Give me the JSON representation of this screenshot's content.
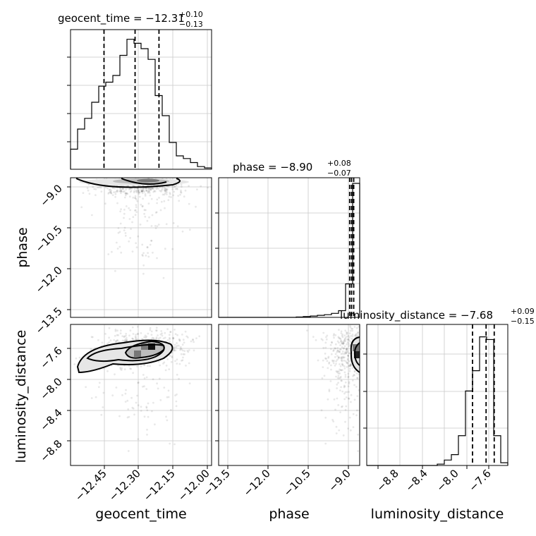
{
  "chart_data": {
    "type": "corner",
    "parameters": [
      "geocent_time",
      "phase",
      "luminosity_distance"
    ],
    "axis_labels": {
      "geocent_time": "geocent_time",
      "phase": "phase",
      "luminosity_distance": "luminosity_distance"
    },
    "titles": [
      {
        "param": "geocent_time",
        "main": "geocent_time = −12.31",
        "plus": "+0.10",
        "minus": "−0.13"
      },
      {
        "param": "phase",
        "main": "phase = −8.90",
        "plus": "+0.08",
        "minus": "−0.07"
      },
      {
        "param": "luminosity_distance",
        "main": "luminosity_distance = −7.68",
        "plus": "+0.09",
        "minus": "−0.15"
      }
    ],
    "ranges": {
      "geocent_time": [
        -12.58,
        -11.99
      ],
      "phase": [
        -13.8,
        -8.6
      ],
      "luminosity_distance": [
        -9.0,
        -7.44
      ]
    },
    "ticks": {
      "geocent_time": {
        "values": [
          -12.45,
          -12.3,
          -12.15,
          -12.0
        ],
        "labels": [
          "−12.45",
          "−12.30",
          "−12.15",
          "−12.00"
        ]
      },
      "phase_x": {
        "values": [
          -13.5,
          -12.0,
          -10.5,
          -9.0
        ],
        "labels": [
          "−13.5",
          "−12.0",
          "−10.5",
          "−9.0"
        ]
      },
      "phase_y": {
        "values": [
          -9.0,
          -10.5,
          -12.0,
          -13.5
        ],
        "labels": [
          "−9.0",
          "−10.5",
          "−12.0",
          "−13.5"
        ]
      },
      "luminosity_distance": {
        "values": [
          -8.8,
          -8.4,
          -8.0,
          -7.6
        ],
        "labels": [
          "−8.8",
          "−8.4",
          "−8.0",
          "−7.6"
        ]
      }
    },
    "histograms": {
      "geocent_time": {
        "bin_edges": [
          -12.58,
          -12.5505,
          -12.521,
          -12.4915,
          -12.462,
          -12.4325,
          -12.403,
          -12.3735,
          -12.344,
          -12.3145,
          -12.285,
          -12.2555,
          -12.226,
          -12.1965,
          -12.167,
          -12.1375,
          -12.108,
          -12.0785,
          -12.049,
          -12.0195,
          -11.99
        ],
        "counts": [
          0.15,
          0.3,
          0.38,
          0.5,
          0.62,
          0.65,
          0.7,
          0.85,
          0.97,
          0.94,
          0.9,
          0.82,
          0.55,
          0.4,
          0.2,
          0.1,
          0.08,
          0.05,
          0.02,
          0.01
        ],
        "quantiles": [
          -12.44,
          -12.31,
          -12.21
        ]
      },
      "phase": {
        "bin_edges": [
          -13.8,
          -13.54,
          -13.28,
          -13.02,
          -12.76,
          -12.5,
          -12.24,
          -11.98,
          -11.72,
          -11.46,
          -11.2,
          -10.94,
          -10.68,
          -10.42,
          -10.16,
          -9.9,
          -9.64,
          -9.38,
          -9.12,
          -8.86,
          -8.6
        ],
        "counts": [
          0,
          0,
          0,
          0,
          0,
          0,
          0,
          0,
          0,
          0,
          0,
          0.003,
          0.006,
          0.01,
          0.015,
          0.02,
          0.03,
          0.05,
          0.25,
          1.0
        ],
        "quantiles": [
          -8.97,
          -8.9,
          -8.82
        ]
      },
      "luminosity_distance": {
        "bin_edges": [
          -9.0,
          -8.922,
          -8.844,
          -8.766,
          -8.688,
          -8.61,
          -8.532,
          -8.454,
          -8.376,
          -8.298,
          -8.22,
          -8.142,
          -8.064,
          -7.986,
          -7.908,
          -7.83,
          -7.752,
          -7.674,
          -7.596,
          -7.518,
          -7.44
        ],
        "counts": [
          0,
          0,
          0,
          0,
          0,
          0,
          0,
          0,
          0,
          0,
          0.01,
          0.04,
          0.08,
          0.22,
          0.55,
          0.7,
          0.95,
          0.93,
          0.22,
          0.02
        ],
        "quantiles": [
          -7.83,
          -7.68,
          -7.59
        ]
      }
    },
    "scatter_2d": [
      {
        "x": "geocent_time",
        "y": "phase",
        "center": [
          -12.29,
          -8.93
        ],
        "spread": [
          0.09,
          0.22
        ],
        "tail_y": -13.4
      },
      {
        "x": "geocent_time",
        "y": "luminosity_distance",
        "center": [
          -12.28,
          -7.7
        ],
        "spread": [
          0.1,
          0.1
        ],
        "tail_y": -8.9
      },
      {
        "x": "phase",
        "y": "luminosity_distance",
        "center": [
          -8.9,
          -7.72
        ],
        "spread": [
          0.5,
          0.15
        ],
        "tail_y": -8.4
      }
    ],
    "grid": true
  }
}
